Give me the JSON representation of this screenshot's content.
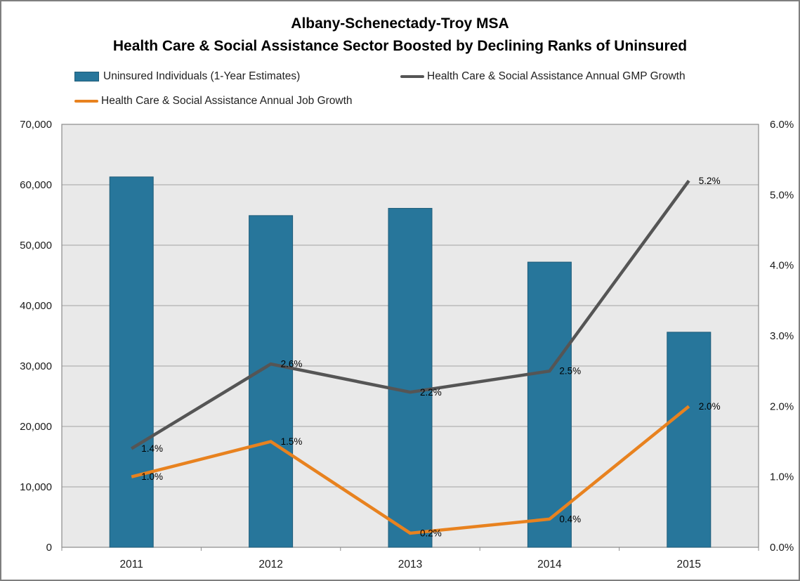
{
  "title": {
    "line1": "Albany-Schenectady-Troy MSA",
    "line2": "Health Care & Social Assistance Sector Boosted by Declining Ranks of Uninsured"
  },
  "legend": {
    "bar_label": "Uninsured Individuals (1-Year Estimates)",
    "gmp_label": "Health Care & Social Assistance Annual GMP Growth",
    "job_label": "Health Care & Social Assistance Annual Job Growth"
  },
  "colors": {
    "bar": "#27769b",
    "bar_border": "#1f5c78",
    "gmp_line": "#555555",
    "job_line": "#e8821f",
    "plot_bg": "#e9e9e9",
    "gridline": "#a3a3a3",
    "plot_border": "#8a8a8a",
    "axis_text": "#1a1a1a",
    "label_text": "#000000"
  },
  "chart_data": {
    "type": "bar+line combo",
    "categories": [
      "2011",
      "2012",
      "2013",
      "2014",
      "2015"
    ],
    "series": [
      {
        "name": "Uninsured Individuals (1-Year Estimates)",
        "type": "bar",
        "axis": "left",
        "values": [
          61300,
          54900,
          56100,
          47200,
          35600
        ]
      },
      {
        "name": "Health Care & Social Assistance Annual GMP Growth",
        "type": "line",
        "axis": "right",
        "values": [
          1.4,
          2.6,
          2.2,
          2.5,
          5.2
        ],
        "labels": [
          "1.4%",
          "2.6%",
          "2.2%",
          "2.5%",
          "5.2%"
        ]
      },
      {
        "name": "Health Care & Social Assistance Annual Job Growth",
        "type": "line",
        "axis": "right",
        "values": [
          1.0,
          1.5,
          0.2,
          0.4,
          2.0
        ],
        "labels": [
          "1.0%",
          "1.5%",
          "0.2%",
          "0.4%",
          "2.0%"
        ]
      }
    ],
    "left_axis": {
      "ticks": [
        "0",
        "10,000",
        "20,000",
        "30,000",
        "40,000",
        "50,000",
        "60,000",
        "70,000"
      ],
      "min": 0,
      "max": 70000
    },
    "right_axis": {
      "ticks": [
        "0.0%",
        "1.0%",
        "2.0%",
        "3.0%",
        "4.0%",
        "5.0%",
        "6.0%"
      ],
      "min": 0,
      "max": 6
    },
    "grid": true,
    "legend_position": "top"
  }
}
